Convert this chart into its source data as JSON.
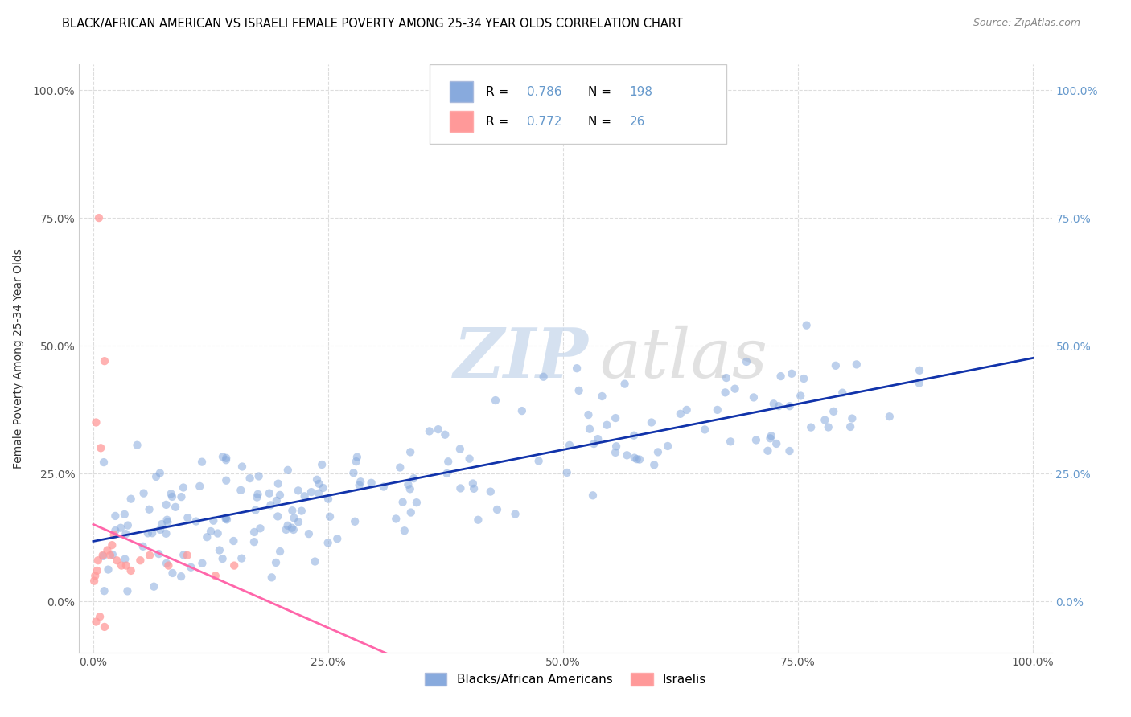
{
  "title": "BLACK/AFRICAN AMERICAN VS ISRAELI FEMALE POVERTY AMONG 25-34 YEAR OLDS CORRELATION CHART",
  "source": "Source: ZipAtlas.com",
  "ylabel_label": "Female Poverty Among 25-34 Year Olds",
  "watermark_zip": "ZIP",
  "watermark_atlas": "atlas",
  "blue_R": 0.786,
  "blue_N": 198,
  "pink_R": 0.772,
  "pink_N": 26,
  "blue_color": "#88AADD",
  "pink_color": "#FF9999",
  "blue_line_color": "#1133AA",
  "pink_line_color": "#FF66AA",
  "legend_blue_label": "Blacks/African Americans",
  "legend_pink_label": "Israelis",
  "bg_color": "#FFFFFF",
  "grid_color": "#DDDDDD",
  "right_tick_color": "#6699CC",
  "xlim": [
    0.0,
    1.0
  ],
  "ylim": [
    0.0,
    1.0
  ],
  "x_ticks": [
    0.0,
    0.25,
    0.5,
    0.75,
    1.0
  ],
  "y_ticks": [
    0.0,
    0.25,
    0.5,
    0.75,
    1.0
  ]
}
